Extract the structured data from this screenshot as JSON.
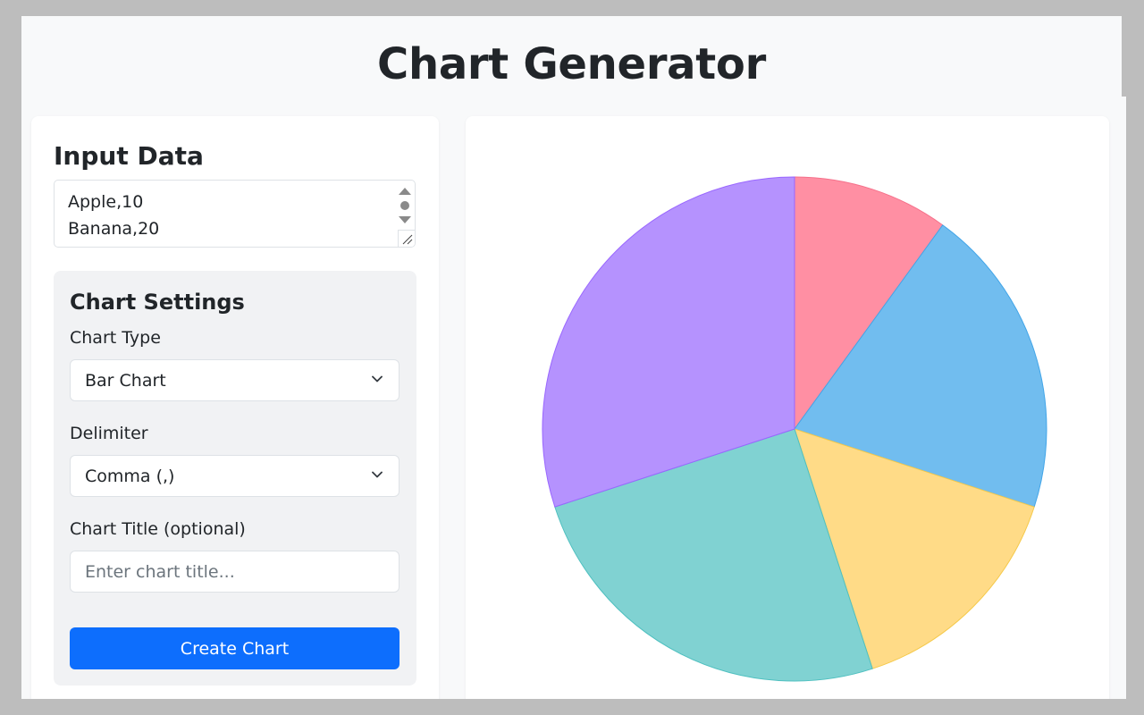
{
  "page": {
    "title": "Chart Generator"
  },
  "input": {
    "section_title": "Input Data",
    "lines": [
      "Apple,10",
      "Banana,20"
    ]
  },
  "settings": {
    "title": "Chart Settings",
    "chart_type_label": "Chart Type",
    "chart_type_value": "Bar Chart",
    "delimiter_label": "Delimiter",
    "delimiter_value": "Comma (,)",
    "chart_title_label": "Chart Title (optional)",
    "chart_title_placeholder": "Enter chart title...",
    "create_button_label": "Create Chart"
  },
  "chart_data": {
    "type": "pie",
    "values": [
      10,
      20,
      15,
      25,
      30
    ],
    "colors": [
      "#ff8fa3",
      "#71bdef",
      "#ffdb87",
      "#80d2d2",
      "#b592fe"
    ],
    "stroke_colors": [
      "#f5718b",
      "#42a5e8",
      "#f5c94a",
      "#4fc0c0",
      "#9966ff"
    ]
  }
}
